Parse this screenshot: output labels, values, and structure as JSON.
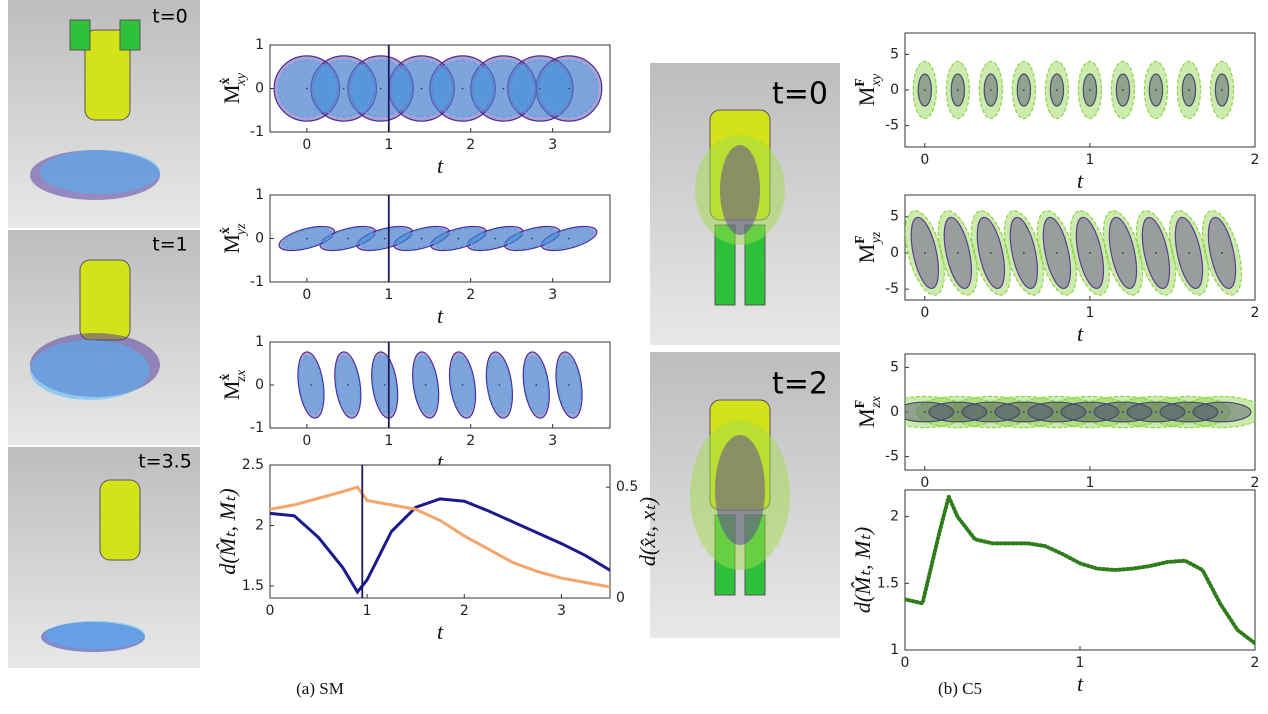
{
  "chart_data": [
    {
      "type": "ellipse",
      "xlabel": "t",
      "ylabel": {
        "base": "M",
        "sup": "ẋ",
        "sub": "xy"
      },
      "xlim": [
        -0.45,
        3.7
      ],
      "ylim": [
        -1,
        1
      ],
      "xticks": [
        0,
        1,
        2,
        3
      ],
      "yticks": [
        -1,
        0,
        1
      ],
      "vline": 1,
      "vline_color": "#1a1a5e",
      "x": [
        0,
        0.45,
        0.9,
        1.4,
        1.9,
        2.4,
        2.85,
        3.2
      ],
      "layers": [
        {
          "color": "#4a2f9a",
          "width": 0.8,
          "height": 1.5,
          "angle": 0,
          "dash": false
        },
        {
          "color": "#48a8e8",
          "width": 0.7,
          "height": 1.3,
          "angle": 0,
          "dash": true
        }
      ]
    },
    {
      "type": "ellipse",
      "xlabel": "t",
      "ylabel": {
        "base": "M",
        "sup": "ẋ",
        "sub": "yz"
      },
      "xlim": [
        -0.45,
        3.7
      ],
      "ylim": [
        -1,
        1
      ],
      "xticks": [
        0,
        1,
        2,
        3
      ],
      "yticks": [
        -1,
        0,
        1
      ],
      "vline": 1,
      "vline_color": "#1a1a5e",
      "x": [
        0,
        0.5,
        0.95,
        1.4,
        1.85,
        2.3,
        2.75,
        3.2
      ],
      "layers": [
        {
          "color": "#4a2f9a",
          "width": 0.7,
          "height": 0.45,
          "angle": -15,
          "dash": false
        },
        {
          "color": "#48a8e8",
          "width": 0.6,
          "height": 0.38,
          "angle": -15,
          "dash": true
        }
      ]
    },
    {
      "type": "ellipse",
      "xlabel": "t",
      "ylabel": {
        "base": "M",
        "sup": "ẋ",
        "sub": "zx"
      },
      "xlim": [
        -0.45,
        3.7
      ],
      "ylim": [
        -1,
        1
      ],
      "xticks": [
        0,
        1,
        2,
        3
      ],
      "yticks": [
        -1,
        0,
        1
      ],
      "vline": 1,
      "vline_color": "#1a1a5e",
      "x": [
        0.05,
        0.5,
        0.95,
        1.45,
        1.9,
        2.35,
        2.8,
        3.2
      ],
      "layers": [
        {
          "color": "#4a2f9a",
          "width": 0.3,
          "height": 1.55,
          "angle": -8,
          "dash": false
        },
        {
          "color": "#48a8e8",
          "width": 0.27,
          "height": 1.35,
          "angle": -8,
          "dash": true
        }
      ]
    },
    {
      "type": "line",
      "xlabel": "t",
      "ylabel": "d(M̂ₜ, Mₜ)",
      "y2label": "d(x̂ₜ, xₜ)",
      "xlim": [
        0,
        3.5
      ],
      "ylim": [
        1.4,
        2.5
      ],
      "y2lim": [
        0,
        0.6
      ],
      "xticks": [
        0,
        1,
        2,
        3
      ],
      "yticks": [
        1.5,
        2,
        2.5
      ],
      "y2ticks": [
        0,
        0.5
      ],
      "vline": 0.95,
      "vline_color": "#1a1a5e",
      "dotted": false,
      "x": [
        0,
        0.25,
        0.5,
        0.75,
        0.9,
        1,
        1.25,
        1.5,
        1.75,
        2,
        2.25,
        2.5,
        2.75,
        3,
        3.25,
        3.5
      ],
      "series": [
        {
          "color": "#1a1a8c",
          "values": [
            2.1,
            2.08,
            1.9,
            1.65,
            1.45,
            1.55,
            1.95,
            2.15,
            2.22,
            2.2,
            2.12,
            2.03,
            1.94,
            1.85,
            1.75,
            1.63
          ]
        },
        {
          "color": "#f5a46a",
          "axis": "y2",
          "values": [
            0.4,
            0.42,
            0.45,
            0.48,
            0.5,
            0.44,
            0.42,
            0.4,
            0.35,
            0.28,
            0.22,
            0.16,
            0.12,
            0.09,
            0.07,
            0.05
          ]
        }
      ]
    },
    {
      "type": "ellipse",
      "xlabel": "t",
      "ylabel": {
        "base": "M",
        "sup": "F",
        "sub": "xy"
      },
      "xlim": [
        -0.12,
        2
      ],
      "ylim": [
        -8,
        8
      ],
      "xticks": [
        0,
        1,
        2
      ],
      "yticks": [
        -5,
        0,
        5
      ],
      "x": [
        0,
        0.2,
        0.4,
        0.6,
        0.8,
        1,
        1.2,
        1.4,
        1.6,
        1.8
      ],
      "layers": [
        {
          "color": "#8fd44a",
          "width": 0.14,
          "height": 8,
          "angle": 0,
          "dash": true
        },
        {
          "color": "#4a4a6a",
          "width": 0.08,
          "height": 4.5,
          "angle": 0,
          "dash": false
        }
      ]
    },
    {
      "type": "ellipse",
      "xlabel": "t",
      "ylabel": {
        "base": "M",
        "sup": "F",
        "sub": "yz"
      },
      "xlim": [
        -0.12,
        2
      ],
      "ylim": [
        -6.5,
        8
      ],
      "xticks": [
        0,
        1,
        2
      ],
      "yticks": [
        -5,
        0,
        5
      ],
      "x": [
        0,
        0.2,
        0.4,
        0.6,
        0.8,
        1,
        1.2,
        1.4,
        1.6,
        1.8
      ],
      "layers": [
        {
          "color": "#8fd44a",
          "width": 0.2,
          "height": 12,
          "angle": -15,
          "dash": true
        },
        {
          "color": "#5a3f8a",
          "width": 0.14,
          "height": 10,
          "angle": -12,
          "dash": false
        }
      ]
    },
    {
      "type": "ellipse",
      "xlabel": "t",
      "ylabel": {
        "base": "M",
        "sup": "F",
        "sub": "zx"
      },
      "xlim": [
        -0.12,
        2
      ],
      "ylim": [
        -6.5,
        6.5
      ],
      "xticks": [
        0,
        1,
        2
      ],
      "yticks": [
        -5,
        0,
        5
      ],
      "x": [
        0,
        0.2,
        0.4,
        0.6,
        0.8,
        1,
        1.2,
        1.4,
        1.6,
        1.8
      ],
      "layers": [
        {
          "color": "#8fd44a",
          "width": 0.5,
          "height": 3.5,
          "angle": 0,
          "dash": true
        },
        {
          "color": "#4a4a6a",
          "width": 0.35,
          "height": 2.2,
          "angle": 0,
          "dash": false
        }
      ]
    },
    {
      "type": "line",
      "xlabel": "t",
      "ylabel": "d(M̂ₜ, Mₜ)",
      "xlim": [
        0,
        2
      ],
      "ylim": [
        1,
        2.2
      ],
      "xticks": [
        0,
        1,
        2
      ],
      "yticks": [
        1,
        1.5,
        2
      ],
      "dotted": true,
      "x": [
        0,
        0.1,
        0.2,
        0.25,
        0.3,
        0.4,
        0.5,
        0.6,
        0.7,
        0.8,
        0.9,
        1,
        1.1,
        1.2,
        1.3,
        1.4,
        1.5,
        1.6,
        1.7,
        1.8,
        1.9,
        2
      ],
      "series": [
        {
          "color": "#2e7d1a",
          "values": [
            1.38,
            1.35,
            1.9,
            2.15,
            2.0,
            1.83,
            1.8,
            1.8,
            1.8,
            1.78,
            1.72,
            1.65,
            1.61,
            1.6,
            1.61,
            1.63,
            1.66,
            1.67,
            1.6,
            1.35,
            1.15,
            1.05
          ]
        }
      ]
    }
  ],
  "images": [
    {
      "label": "t=0"
    },
    {
      "label": "t=1"
    },
    {
      "label": "t=3.5"
    },
    {
      "label": "t=0"
    },
    {
      "label": "t=2"
    }
  ],
  "captions": [
    "(a) SM",
    "(b) C5"
  ]
}
